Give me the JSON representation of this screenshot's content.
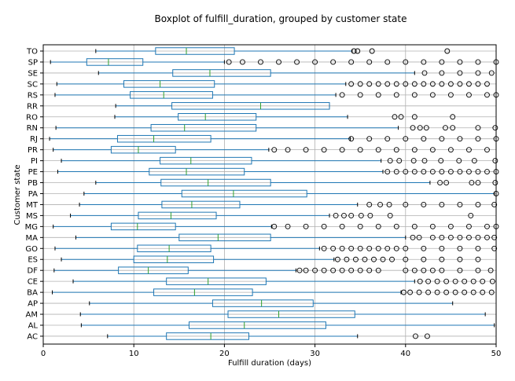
{
  "chart_data": {
    "type": "boxplot",
    "title": "Boxplot of fulfill_duration, grouped by customer state",
    "xlabel": "Fulfill duration (days)",
    "ylabel": "Customer state",
    "xlim": [
      0,
      50
    ],
    "xticks": [
      0,
      10,
      20,
      30,
      40,
      50
    ],
    "grid": true,
    "colors": {
      "box": "#1f77b4",
      "median": "#2ca02c",
      "outlier": "#000000",
      "grid": "#b0b0b0"
    },
    "categories": [
      "TO",
      "SP",
      "SE",
      "SC",
      "RS",
      "RR",
      "RO",
      "RN",
      "RJ",
      "PR",
      "PI",
      "PE",
      "PB",
      "PA",
      "MT",
      "MS",
      "MG",
      "MA",
      "GO",
      "ES",
      "DF",
      "CE",
      "BA",
      "AP",
      "AM",
      "AL",
      "AC"
    ],
    "boxes": [
      {
        "label": "TO",
        "whislo": 5.8,
        "q1": 12.4,
        "med": 15.8,
        "q3": 21.1,
        "whishi": 34.1,
        "fliers": [
          34.3,
          34.7,
          36.3,
          44.6
        ]
      },
      {
        "label": "SP",
        "whislo": 0.8,
        "q1": 4.8,
        "med": 7.2,
        "q3": 11.0,
        "whishi": 20.0,
        "fliers": [
          20.5,
          22,
          24,
          26,
          28,
          30,
          32,
          34,
          36,
          38,
          40,
          42,
          44,
          46,
          48,
          50
        ]
      },
      {
        "label": "SE",
        "whislo": 6.1,
        "q1": 14.3,
        "med": 18.4,
        "q3": 25.1,
        "whishi": 41.0,
        "fliers": [
          42.1,
          44.0,
          46.0,
          48.0,
          49.5
        ]
      },
      {
        "label": "SC",
        "whislo": 1.5,
        "q1": 8.9,
        "med": 12.9,
        "q3": 18.9,
        "whishi": 33.4,
        "fliers": [
          34,
          35,
          36,
          37,
          38,
          39,
          40,
          41,
          42,
          43,
          44,
          45,
          46,
          47,
          48,
          49
        ]
      },
      {
        "label": "RS",
        "whislo": 1.3,
        "q1": 9.6,
        "med": 13.3,
        "q3": 18.7,
        "whishi": 32.3,
        "fliers": [
          33,
          35,
          37,
          39,
          41,
          43,
          45,
          47,
          49,
          50
        ]
      },
      {
        "label": "RR",
        "whislo": 8.0,
        "q1": 14.2,
        "med": 24.0,
        "q3": 31.6,
        "whishi": 31.6,
        "fliers": []
      },
      {
        "label": "RO",
        "whislo": 7.9,
        "q1": 14.9,
        "med": 17.9,
        "q3": 23.5,
        "whishi": 33.6,
        "fliers": [
          38.8,
          39.5,
          41.0,
          45.2
        ]
      },
      {
        "label": "RN",
        "whislo": 1.4,
        "q1": 11.9,
        "med": 15.6,
        "q3": 23.5,
        "whishi": 39.2,
        "fliers": [
          40.8,
          41.6,
          42.3,
          44.4,
          45.2,
          48.0,
          49.9
        ]
      },
      {
        "label": "RJ",
        "whislo": 0.7,
        "q1": 8.2,
        "med": 12.2,
        "q3": 18.5,
        "whishi": 33.9,
        "fliers": [
          34,
          36,
          38,
          40,
          42,
          44,
          46,
          48,
          50
        ]
      },
      {
        "label": "PR",
        "whislo": 1.1,
        "q1": 7.5,
        "med": 10.5,
        "q3": 14.6,
        "whishi": 24.9,
        "fliers": [
          25.5,
          27,
          29,
          31,
          33,
          35,
          37,
          39,
          41,
          43,
          45,
          47,
          49
        ]
      },
      {
        "label": "PI",
        "whislo": 2.0,
        "q1": 12.9,
        "med": 16.3,
        "q3": 23.0,
        "whishi": 37.3,
        "fliers": [
          38.3,
          39.3,
          40.9,
          42.1,
          43.9,
          45.9,
          47.6,
          49.9
        ]
      },
      {
        "label": "PE",
        "whislo": 1.6,
        "q1": 11.7,
        "med": 15.8,
        "q3": 22.2,
        "whishi": 37.5,
        "fliers": [
          38,
          39,
          40,
          41,
          42,
          43,
          44,
          45,
          46,
          47,
          48,
          49,
          50
        ]
      },
      {
        "label": "PB",
        "whislo": 5.8,
        "q1": 13.0,
        "med": 18.2,
        "q3": 25.1,
        "whishi": 42.7,
        "fliers": [
          43.8,
          44.5,
          47.3,
          48.0,
          49.9
        ]
      },
      {
        "label": "PA",
        "whislo": 4.5,
        "q1": 15.3,
        "med": 21.0,
        "q3": 29.1,
        "whishi": 49.8,
        "fliers": [
          50.0
        ]
      },
      {
        "label": "MT",
        "whislo": 4.0,
        "q1": 13.1,
        "med": 16.4,
        "q3": 21.7,
        "whishi": 34.7,
        "fliers": [
          36.0,
          37.2,
          38.2,
          40.0,
          42.0,
          44.0,
          46.0,
          48.0,
          49.8
        ]
      },
      {
        "label": "MS",
        "whislo": 3.0,
        "q1": 10.5,
        "med": 14.1,
        "q3": 19.1,
        "whishi": 31.6,
        "fliers": [
          32.3,
          33.2,
          34.0,
          35.1,
          36.1,
          38.3,
          47.2
        ]
      },
      {
        "label": "MG",
        "whislo": 1.1,
        "q1": 7.5,
        "med": 10.4,
        "q3": 14.6,
        "whishi": 25.2,
        "fliers": [
          25.5,
          27,
          29,
          31,
          33,
          35,
          37,
          39,
          41,
          43,
          45,
          47,
          49,
          50
        ]
      },
      {
        "label": "MA",
        "whislo": 3.6,
        "q1": 15.0,
        "med": 19.3,
        "q3": 25.1,
        "whishi": 40.0,
        "fliers": [
          40.8,
          41.5,
          43,
          44,
          45,
          46,
          47,
          48,
          49,
          49.8
        ]
      },
      {
        "label": "GO",
        "whislo": 1.3,
        "q1": 10.4,
        "med": 13.9,
        "q3": 18.5,
        "whishi": 30.5,
        "fliers": [
          31,
          32,
          33,
          34,
          35,
          36,
          37,
          38,
          39,
          40,
          42,
          44,
          46,
          48,
          49.8
        ]
      },
      {
        "label": "ES",
        "whislo": 2.0,
        "q1": 10.0,
        "med": 13.7,
        "q3": 18.8,
        "whishi": 32.1,
        "fliers": [
          32.5,
          33.5,
          34.5,
          35.5,
          36.5,
          37.5,
          38.5,
          40.0,
          42.0,
          44.0,
          46.0,
          48.0
        ]
      },
      {
        "label": "DF",
        "whislo": 1.2,
        "q1": 8.3,
        "med": 11.6,
        "q3": 16.0,
        "whishi": 27.9,
        "fliers": [
          28.3,
          29,
          30,
          31,
          32,
          33,
          34,
          35,
          36,
          37,
          40,
          41,
          42,
          43,
          44,
          46,
          48,
          49.4
        ]
      },
      {
        "label": "CE",
        "whislo": 3.3,
        "q1": 13.6,
        "med": 18.2,
        "q3": 24.6,
        "whishi": 41.0,
        "fliers": [
          41.6,
          42.5,
          43.5,
          44.5,
          45.5,
          46.5,
          47.5,
          48.5,
          49.6
        ]
      },
      {
        "label": "BA",
        "whislo": 1.0,
        "q1": 12.2,
        "med": 16.7,
        "q3": 23.1,
        "whishi": 39.5,
        "fliers": [
          39.8,
          40.5,
          41.5,
          42.5,
          43.5,
          44.5,
          45.5,
          46.5,
          47.5,
          48.5,
          49.5
        ]
      },
      {
        "label": "AP",
        "whislo": 5.1,
        "q1": 18.7,
        "med": 24.1,
        "q3": 29.8,
        "whishi": 45.2,
        "fliers": []
      },
      {
        "label": "AM",
        "whislo": 4.1,
        "q1": 20.4,
        "med": 26.0,
        "q3": 34.4,
        "whishi": 48.8,
        "fliers": []
      },
      {
        "label": "AL",
        "whislo": 4.2,
        "q1": 16.1,
        "med": 22.2,
        "q3": 31.2,
        "whishi": 49.8,
        "fliers": []
      },
      {
        "label": "AC",
        "whislo": 7.1,
        "q1": 13.6,
        "med": 18.5,
        "q3": 22.7,
        "whishi": 34.7,
        "fliers": [
          41.1,
          42.4
        ]
      }
    ]
  }
}
